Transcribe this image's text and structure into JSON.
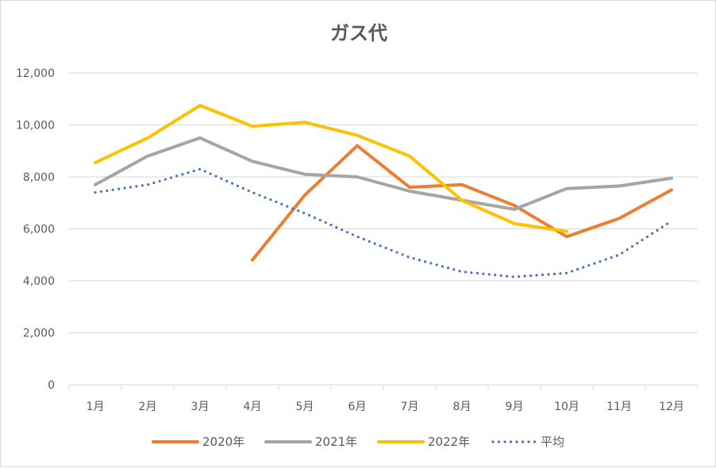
{
  "chart_data": {
    "type": "line",
    "title": "ガス代",
    "xlabel": "",
    "ylabel": "",
    "categories": [
      "1月",
      "2月",
      "3月",
      "4月",
      "5月",
      "6月",
      "7月",
      "8月",
      "9月",
      "10月",
      "11月",
      "12月"
    ],
    "ylim": [
      0,
      12000
    ],
    "yticks": [
      0,
      2000,
      4000,
      6000,
      8000,
      10000,
      12000
    ],
    "ytick_labels": [
      "0",
      "2,000",
      "4,000",
      "6,000",
      "8,000",
      "10,000",
      "12,000"
    ],
    "grid": true,
    "legend_position": "bottom",
    "series": [
      {
        "name": "2020年",
        "color": "#ed7d31",
        "style": "solid",
        "values": [
          null,
          null,
          null,
          4800,
          7300,
          9200,
          7600,
          7700,
          6900,
          5700,
          6400,
          7500
        ]
      },
      {
        "name": "2021年",
        "color": "#a5a5a5",
        "style": "solid",
        "values": [
          7700,
          8800,
          9500,
          8600,
          8100,
          8000,
          7450,
          7100,
          6750,
          7550,
          7650,
          7950
        ]
      },
      {
        "name": "2022年",
        "color": "#ffc000",
        "style": "solid",
        "values": [
          8550,
          9500,
          10750,
          9950,
          10100,
          9600,
          8800,
          7100,
          6200,
          5900,
          null,
          null
        ]
      },
      {
        "name": "平均",
        "color": "#4472c4",
        "style": "dotted",
        "values": [
          7400,
          7700,
          8300,
          7400,
          6600,
          5700,
          4900,
          4350,
          4150,
          4300,
          5000,
          6300
        ]
      }
    ]
  }
}
